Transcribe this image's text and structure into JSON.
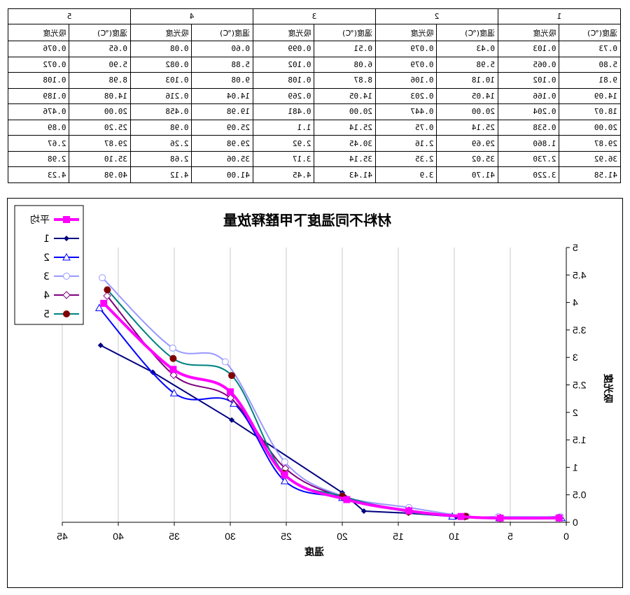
{
  "table": {
    "groups": [
      "1",
      "2",
      "3",
      "4",
      "5"
    ],
    "subheaders": [
      "温度(℃)",
      "吸光度"
    ],
    "rows": [
      [
        "0.73",
        "0.103",
        "0.43",
        "0.079",
        "0.51",
        "0.099",
        "0.60",
        "0.08",
        "0.65",
        "0.076"
      ],
      [
        "5.80",
        "0.065",
        "5.98",
        "0.079",
        "6.08",
        "0.102",
        "5.88",
        "0.082",
        "5.90",
        "0.072"
      ],
      [
        "9.81",
        "0.102",
        "10.18",
        "0.106",
        "8.87",
        "0.108",
        "9.08",
        "0.103",
        "8.98",
        "0.108"
      ],
      [
        "14.09",
        "0.166",
        "14.05",
        "0.203",
        "14.05",
        "0.269",
        "14.04",
        "0.216",
        "14.08",
        "0.189"
      ],
      [
        "18.07",
        "0.204",
        "20.00",
        "0.447",
        "20.00",
        "0.481",
        "19.98",
        "0.458",
        "20.00",
        "0.476"
      ],
      [
        "20.00",
        "0.538",
        "25.14",
        "0.75",
        "25.14",
        "1.1",
        "25.09",
        "0.98",
        "25.20",
        "0.89"
      ],
      [
        "29.87",
        "1.860",
        "29.69",
        "2.16",
        "30.45",
        "2.92",
        "29.98",
        "2.26",
        "29.87",
        "2.67"
      ],
      [
        "36.92",
        "2.730",
        "35.02",
        "2.35",
        "35.14",
        "3.17",
        "35.06",
        "2.68",
        "35.10",
        "2.98"
      ],
      [
        "41.58",
        "3.220",
        "41.70",
        "3.9",
        "41.43",
        "4.45",
        "41.00",
        "4.12",
        "40.98",
        "4.23"
      ]
    ]
  },
  "chart_data": {
    "type": "line",
    "title": "材料不同温度下甲醛释放量",
    "xlabel": "温度",
    "ylabel": "吸光度",
    "xlim": [
      0,
      45
    ],
    "ylim": [
      0,
      5
    ],
    "xticks": [
      "0",
      "5",
      "10",
      "15",
      "20",
      "25",
      "30",
      "35",
      "40",
      "45"
    ],
    "yticks": [
      "0",
      "0.5",
      "1",
      "1.5",
      "2",
      "2.5",
      "3",
      "3.5",
      "4",
      "4.5",
      "5"
    ],
    "grid": true,
    "legend_position": "top-left",
    "series": [
      {
        "name": "平均",
        "color": "#ff00ff",
        "marker": "square",
        "smooth": true,
        "x": [
          0.65,
          5.9,
          9.4,
          14.06,
          19.6,
          25.15,
          30.0,
          35.1,
          41.3
        ],
        "y": [
          0.078,
          0.076,
          0.105,
          0.209,
          0.413,
          0.862,
          2.374,
          2.782,
          3.984
        ]
      },
      {
        "name": "1",
        "color": "#000080",
        "marker": "diamond",
        "smooth": false,
        "x": [
          0.73,
          5.8,
          9.81,
          14.09,
          18.07,
          20.0,
          29.87,
          36.92,
          41.58
        ],
        "y": [
          0.103,
          0.065,
          0.102,
          0.166,
          0.204,
          0.538,
          1.86,
          2.73,
          3.22
        ]
      },
      {
        "name": "2",
        "color": "#0000ff",
        "marker": "triangle",
        "smooth": true,
        "x": [
          0.43,
          5.98,
          10.18,
          14.05,
          20.0,
          25.14,
          29.69,
          35.02,
          41.7
        ],
        "y": [
          0.079,
          0.079,
          0.106,
          0.203,
          0.447,
          0.75,
          2.16,
          2.35,
          3.9
        ]
      },
      {
        "name": "3",
        "color": "#9999ff",
        "marker": "circle-open",
        "smooth": true,
        "x": [
          0.51,
          6.08,
          8.87,
          14.05,
          20.0,
          25.14,
          30.45,
          35.14,
          41.43
        ],
        "y": [
          0.099,
          0.102,
          0.108,
          0.269,
          0.481,
          1.1,
          2.92,
          3.17,
          4.45
        ]
      },
      {
        "name": "4",
        "color": "#800080",
        "marker": "diamond-open",
        "smooth": true,
        "x": [
          0.6,
          5.88,
          9.08,
          14.04,
          19.98,
          25.09,
          29.98,
          35.06,
          41.0
        ],
        "y": [
          0.08,
          0.082,
          0.103,
          0.216,
          0.458,
          0.98,
          2.26,
          2.68,
          4.12
        ]
      },
      {
        "name": "5",
        "color": "#008080",
        "marker": "circle-filled",
        "marker_color": "#800000",
        "smooth": true,
        "x": [
          0.65,
          5.9,
          8.98,
          14.08,
          20.0,
          25.2,
          29.87,
          35.1,
          40.98
        ],
        "y": [
          0.076,
          0.072,
          0.108,
          0.189,
          0.476,
          0.89,
          2.67,
          2.98,
          4.23
        ]
      }
    ]
  }
}
